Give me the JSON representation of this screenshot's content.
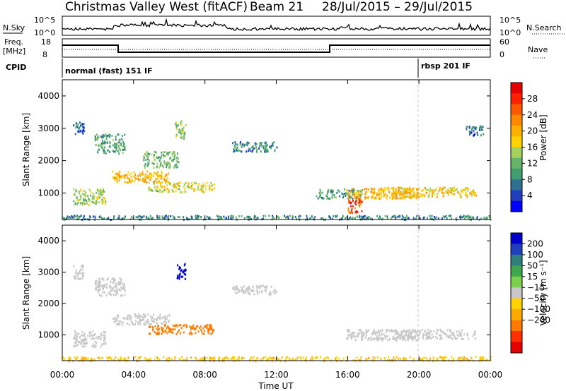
{
  "header": {
    "station": "Christmas Valley West (fitACF)",
    "beam": "Beam 21",
    "date_range": "28/Jul/2015 – 29/Jul/2015"
  },
  "aux_panels": {
    "nsky_label": "N.Sky",
    "nsky_ticks": [
      "10^5",
      "10^0"
    ],
    "nsearch_label": "N.Search",
    "nsearch_ticks": [
      "10^5",
      "10^0"
    ],
    "freq_label": "Freq.",
    "freq_unit": "[MHz]",
    "freq_ticks": [
      "18",
      "8"
    ],
    "nave_label": "Nave",
    "nave_ticks": [
      "60",
      "0"
    ],
    "cpid_label": "CPID",
    "cpid_mode1": "normal (fast) 151 IF",
    "cpid_mode2": "rbsp 201 IF"
  },
  "chart_data": [
    {
      "type": "heatmap",
      "panel": "power",
      "ylabel": "Slant Range [km]",
      "xlabel": "",
      "x_ticks": [
        "00:00",
        "04:00",
        "08:00",
        "12:00",
        "16:00",
        "20:00",
        "00:00"
      ],
      "y_ticks": [
        "1000",
        "2000",
        "3000",
        "4000"
      ],
      "xlim": [
        0,
        24
      ],
      "ylim": [
        180,
        4500
      ],
      "colorbar": {
        "label": "Power [dB]",
        "ticks": [
          "4",
          "8",
          "12",
          "16",
          "20",
          "24",
          "28"
        ],
        "range": [
          0,
          32
        ],
        "colors": [
          "#0000ff",
          "#1f3fbf",
          "#2f6f8f",
          "#3f9f6f",
          "#66b36a",
          "#a6d15a",
          "#ffd200",
          "#ffb000",
          "#ff8a00",
          "#ff5a00",
          "#ff2000",
          "#e60000"
        ]
      },
      "regions": [
        {
          "x": [
            0.6,
            1.2
          ],
          "y": [
            2800,
            3250
          ],
          "v": 6
        },
        {
          "x": [
            1.8,
            3.5
          ],
          "y": [
            2250,
            2850
          ],
          "v": 10
        },
        {
          "x": [
            0.6,
            2.4
          ],
          "y": [
            650,
            1150
          ],
          "v": 14
        },
        {
          "x": [
            2.8,
            6.0
          ],
          "y": [
            1350,
            1700
          ],
          "v": 20
        },
        {
          "x": [
            4.8,
            8.5
          ],
          "y": [
            1050,
            1350
          ],
          "v": 16
        },
        {
          "x": [
            4.5,
            6.5
          ],
          "y": [
            1800,
            2300
          ],
          "v": 12
        },
        {
          "x": [
            6.3,
            6.9
          ],
          "y": [
            2700,
            3250
          ],
          "v": 14
        },
        {
          "x": [
            9.5,
            12.0
          ],
          "y": [
            2300,
            2600
          ],
          "v": 8
        },
        {
          "x": [
            14.2,
            16.8
          ],
          "y": [
            850,
            1150
          ],
          "v": 10
        },
        {
          "x": [
            15.9,
            20.0
          ],
          "y": [
            850,
            1200
          ],
          "v": 20
        },
        {
          "x": [
            16.0,
            16.8
          ],
          "y": [
            400,
            850
          ],
          "v": 26
        },
        {
          "x": [
            18.5,
            23.2
          ],
          "y": [
            900,
            1200
          ],
          "v": 18
        },
        {
          "x": [
            22.6,
            23.6
          ],
          "y": [
            2800,
            3100
          ],
          "v": 6
        },
        {
          "x": [
            0.0,
            24.0
          ],
          "y": [
            200,
            330
          ],
          "v": 8
        }
      ]
    },
    {
      "type": "heatmap",
      "panel": "velocity",
      "ylabel": "Slant Range [km]",
      "xlabel": "Time UT",
      "x_ticks": [
        "00:00",
        "04:00",
        "08:00",
        "12:00",
        "16:00",
        "20:00",
        "00:00"
      ],
      "y_ticks": [
        "1000",
        "2000",
        "3000",
        "4000"
      ],
      "xlim": [
        0,
        24
      ],
      "ylim": [
        180,
        4500
      ],
      "colorbar": {
        "label": "Velocity [m s⁻¹]",
        "ticks": [
          "200",
          "100",
          "50",
          "15",
          "−15",
          "−50",
          "−100",
          "−200"
        ],
        "colors": [
          "#0000cc",
          "#1f3fbf",
          "#2f7f7f",
          "#3fa84f",
          "#7ad04a",
          "#c8c8c8",
          "#ffd200",
          "#ffaa00",
          "#ff7a00",
          "#ff3000",
          "#e60000"
        ]
      },
      "regions": [
        {
          "x": [
            0.6,
            1.2
          ],
          "y": [
            2800,
            3250
          ],
          "v": 0
        },
        {
          "x": [
            1.8,
            3.5
          ],
          "y": [
            2250,
            2850
          ],
          "v": 0
        },
        {
          "x": [
            0.6,
            2.4
          ],
          "y": [
            650,
            1150
          ],
          "v": 0
        },
        {
          "x": [
            2.8,
            6.0
          ],
          "y": [
            1350,
            1700
          ],
          "v": 0
        },
        {
          "x": [
            4.8,
            8.5
          ],
          "y": [
            1050,
            1350
          ],
          "v": -120
        },
        {
          "x": [
            6.4,
            6.9
          ],
          "y": [
            2800,
            3300
          ],
          "v": 220
        },
        {
          "x": [
            9.5,
            12.0
          ],
          "y": [
            2300,
            2600
          ],
          "v": 0
        },
        {
          "x": [
            15.9,
            20.0
          ],
          "y": [
            850,
            1200
          ],
          "v": 0
        },
        {
          "x": [
            18.5,
            23.2
          ],
          "y": [
            900,
            1200
          ],
          "v": 0
        },
        {
          "x": [
            0.0,
            24.0
          ],
          "y": [
            200,
            330
          ],
          "v": -40
        }
      ]
    }
  ]
}
